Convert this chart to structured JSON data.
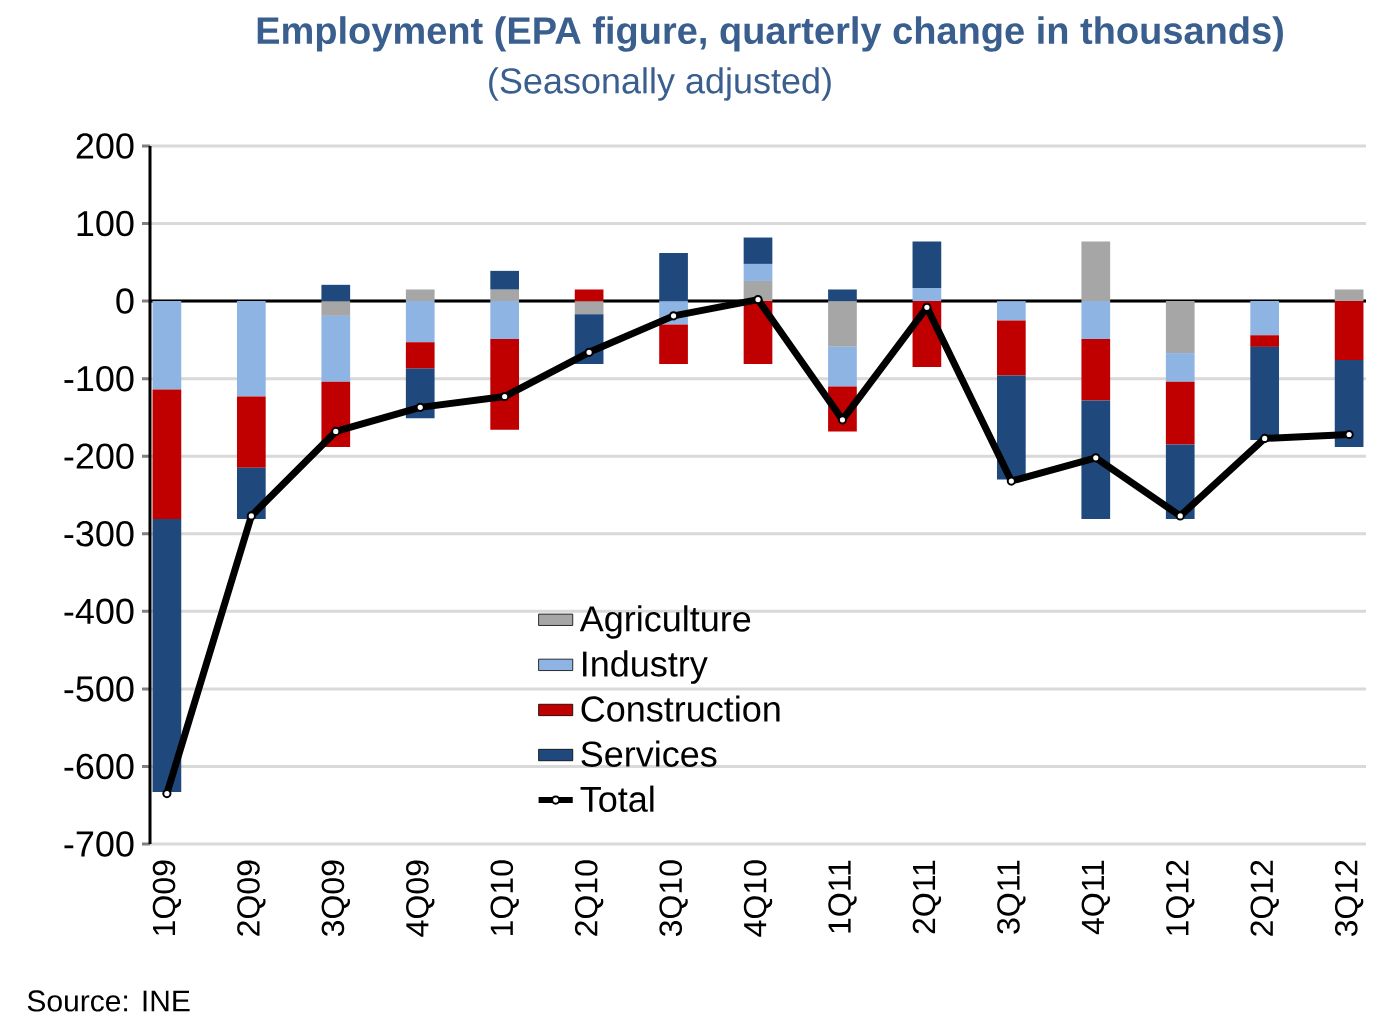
{
  "chart_data": {
    "type": "bar",
    "stacked": true,
    "title": "Employment (EPA figure, quarterly change in thousands)",
    "subtitle": "(Seasonally adjusted)",
    "categories": [
      "1Q09",
      "2Q09",
      "3Q09",
      "4Q09",
      "1Q10",
      "2Q10",
      "3Q10",
      "4Q10",
      "1Q11",
      "2Q11",
      "3Q11",
      "4Q11",
      "1Q12",
      "2Q12",
      "3Q12"
    ],
    "series": [
      {
        "name": "Agriculture",
        "color": "#a6a6a6",
        "values": [
          0,
          0,
          -19,
          15,
          15,
          -17,
          0,
          26,
          -59,
          0,
          0,
          77,
          -67,
          0,
          15
        ]
      },
      {
        "name": "Industry",
        "color": "#8db4e2",
        "values": [
          -114,
          -123,
          -85,
          -53,
          -49,
          0,
          -30,
          22,
          -51,
          17,
          -25,
          -49,
          -37,
          -44,
          0
        ]
      },
      {
        "name": "Construction",
        "color": "#c00000",
        "values": [
          -167,
          -92,
          -84,
          -34,
          -117,
          15,
          -51,
          -81,
          -58,
          -85,
          -71,
          -79,
          -81,
          -15,
          -76
        ]
      },
      {
        "name": "Services",
        "color": "#1f497d",
        "values": [
          -352,
          -66,
          21,
          -64,
          24,
          -64,
          62,
          34,
          15,
          60,
          -134,
          -153,
          -96,
          -120,
          -112
        ]
      },
      {
        "name": "Total",
        "type": "line",
        "color": "#000000",
        "marker": "circle",
        "values": [
          -635,
          -277,
          -168,
          -137,
          -123,
          -66,
          -19,
          2,
          -153,
          -8,
          -232,
          -202,
          -277,
          -177,
          -172
        ]
      }
    ],
    "ylim": [
      -700,
      200
    ],
    "yticks": [
      -700,
      -600,
      -500,
      -400,
      -300,
      -200,
      -100,
      0,
      100,
      200
    ],
    "grid": "y",
    "legend": "bottom",
    "annotations": [
      "Source: INE"
    ]
  }
}
